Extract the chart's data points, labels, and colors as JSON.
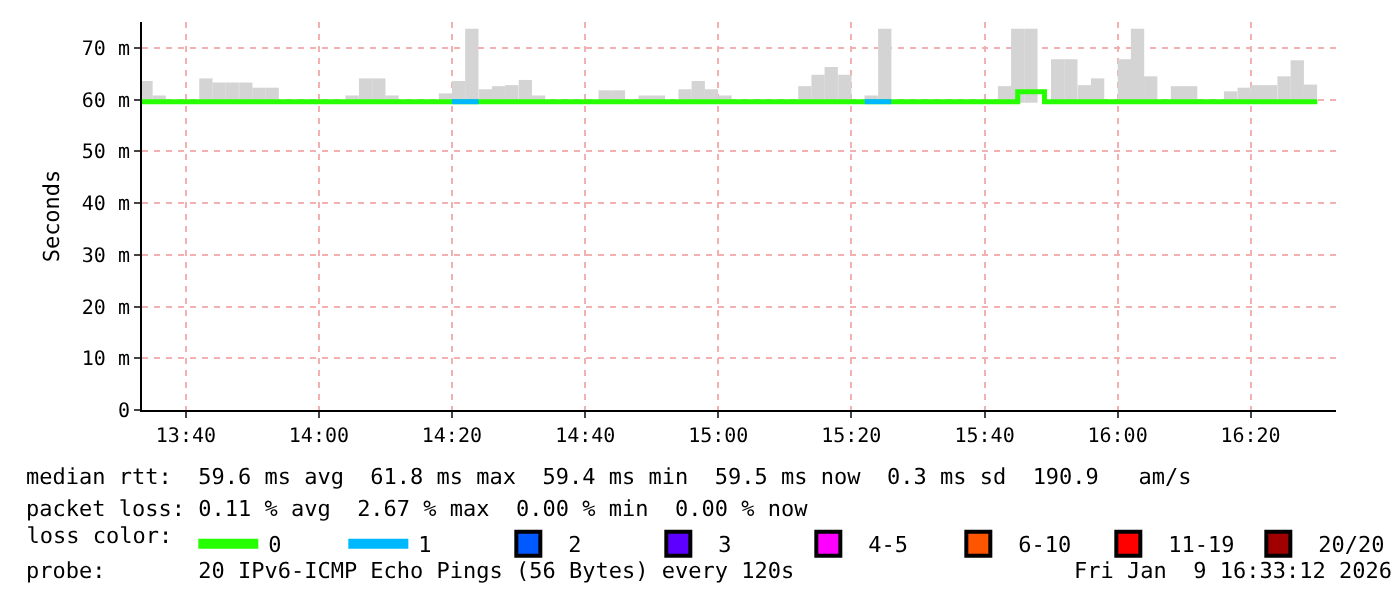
{
  "chart_data": {
    "type": "step",
    "ylabel": "Seconds",
    "xlim": [
      13.557,
      16.547
    ],
    "ylim": [
      0,
      75
    ],
    "xticks": [
      {
        "value": 13.667,
        "label": "13:40"
      },
      {
        "value": 14,
        "label": "14:00"
      },
      {
        "value": 14.333,
        "label": "14:20"
      },
      {
        "value": 14.667,
        "label": "14:40"
      },
      {
        "value": 15,
        "label": "15:00"
      },
      {
        "value": 15.333,
        "label": "15:20"
      },
      {
        "value": 15.667,
        "label": "15:40"
      },
      {
        "value": 16,
        "label": "16:00"
      },
      {
        "value": 16.333,
        "label": "16:20"
      }
    ],
    "yticks": [
      0,
      {
        "value": 10,
        "label": "10 m"
      },
      {
        "value": 20,
        "label": "20 m"
      },
      {
        "value": 30,
        "label": "30 m"
      },
      {
        "value": 40,
        "label": "40 m"
      },
      {
        "value": 50,
        "label": "50 m"
      },
      {
        "value": 60,
        "label": "60 m"
      },
      {
        "value": 70,
        "label": "70 m"
      }
    ],
    "grid": true,
    "legend": "bottom left",
    "legend_title": "loss color:",
    "series": [
      {
        "type": "bar",
        "color": "#d4d4d4",
        "x": [
          13.567,
          13.6,
          13.717,
          13.75,
          13.783,
          13.817,
          13.85,
          13.883,
          14.083,
          14.117,
          14.15,
          14.183,
          14.317,
          14.35,
          14.383,
          14.417,
          14.45,
          14.483,
          14.517,
          14.55,
          14.717,
          14.75,
          14.817,
          14.85,
          14.917,
          14.95,
          14.983,
          15.017,
          15.217,
          15.25,
          15.283,
          15.317,
          15.383,
          15.417,
          15.717,
          15.75,
          15.783,
          15.85,
          15.883,
          15.917,
          15.95,
          16.017,
          16.05,
          16.083,
          16.15,
          16.183,
          16.283,
          16.317,
          16.35,
          16.383,
          16.417,
          16.45,
          16.483
        ],
        "values": [
          4.2,
          1.4,
          4.7,
          3.9,
          3.9,
          3.9,
          2.9,
          2.9,
          1.4,
          4.7,
          4.7,
          1.4,
          1.8,
          4.2,
          14.3,
          2.6,
          3.2,
          3.4,
          4.4,
          1.4,
          2.4,
          2.4,
          1.4,
          1.4,
          2.6,
          4.2,
          2.6,
          1.4,
          3.2,
          5.4,
          6.9,
          5.4,
          1.4,
          14.3,
          3.2,
          14.3,
          14.3,
          8.4,
          8.4,
          3.4,
          4.7,
          8.4,
          14.3,
          5.1,
          3.2,
          3.2,
          2.2,
          2.9,
          3.4,
          3.4,
          5.1,
          8.2,
          3.5
        ],
        "base": [
          59.4,
          59.4,
          59.4,
          59.4,
          59.4,
          59.4,
          59.4,
          59.4,
          59.4,
          59.4,
          59.4,
          59.4,
          59.4,
          59.4,
          59.4,
          59.4,
          59.4,
          59.4,
          59.4,
          59.4,
          59.4,
          59.4,
          59.4,
          59.4,
          59.4,
          59.4,
          59.4,
          59.4,
          59.4,
          59.4,
          59.4,
          59.4,
          59.4,
          59.4,
          59.4,
          59.4,
          59.4,
          59.4,
          59.4,
          59.4,
          59.4,
          59.4,
          59.4,
          59.4,
          59.4,
          59.4,
          59.4,
          59.4,
          59.4,
          59.4,
          59.4,
          59.4,
          59.4
        ]
      },
      {
        "name": "0",
        "color": "#26ff00",
        "x": [
          13.557,
          15.75,
          15.817,
          16.5
        ],
        "values": [
          59.6,
          61.5,
          59.6,
          59.6
        ]
      },
      {
        "type": "line",
        "name": "1",
        "color": "#00b8ff",
        "x": [
          14.333,
          14.4,
          14.401,
          15.367,
          15.433
        ],
        "values": [
          59.6,
          59.6,
          null,
          59.6,
          59.6
        ]
      },
      {
        "name": "2",
        "color": "#0059ff"
      },
      {
        "name": "3",
        "color": "#5e00ff"
      },
      {
        "name": "4-5",
        "color": "#ff00ff"
      },
      {
        "name": "6-10",
        "color": "#ff5500"
      },
      {
        "name": "11-19",
        "color": "#ff0000"
      },
      {
        "name": "20/20",
        "color": "#a10000"
      }
    ],
    "annotations": [
      "median rtt:  59.6 ms avg  61.8 ms max  59.4 ms min  59.5 ms now  0.3 ms sd  190.9   am/s",
      "packet loss: 0.11 % avg  2.67 % max  0.00 % min  0.00 % now",
      "probe:       20 IPv6-ICMP Echo Pings (56 Bytes) every 120s",
      "Fri Jan  9 16:33:12 2026"
    ]
  }
}
